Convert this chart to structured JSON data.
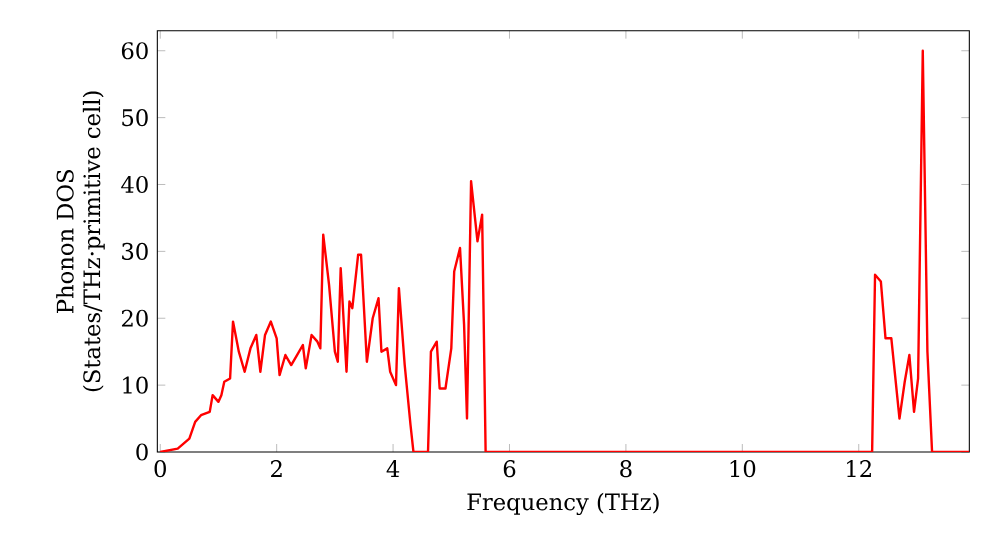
{
  "chart_data": {
    "type": "line",
    "xlabel": "Frequency (THz)",
    "ylabel": "Phonon DOS\n(States/THz·primitive cell)",
    "xlim": [
      -0.05,
      13.9
    ],
    "ylim": [
      0,
      63
    ],
    "xticks": [
      0,
      2,
      4,
      6,
      8,
      10,
      12
    ],
    "yticks": [
      0,
      10,
      20,
      30,
      40,
      50,
      60
    ],
    "grid": false,
    "marker": "none",
    "line_style": "solid",
    "series": [
      {
        "color": "#ff0000",
        "x": [
          0.0,
          0.3,
          0.5,
          0.6,
          0.7,
          0.85,
          0.9,
          1.0,
          1.05,
          1.1,
          1.2,
          1.25,
          1.35,
          1.45,
          1.55,
          1.65,
          1.72,
          1.8,
          1.9,
          2.0,
          2.05,
          2.15,
          2.25,
          2.35,
          2.45,
          2.5,
          2.6,
          2.7,
          2.75,
          2.8,
          2.9,
          3.0,
          3.05,
          3.1,
          3.2,
          3.25,
          3.3,
          3.4,
          3.45,
          3.55,
          3.65,
          3.75,
          3.8,
          3.9,
          3.95,
          4.05,
          4.1,
          4.2,
          4.3,
          4.35,
          4.6,
          4.65,
          4.75,
          4.8,
          4.9,
          5.0,
          5.05,
          5.15,
          5.22,
          5.27,
          5.34,
          5.45,
          5.53,
          5.59,
          12.23,
          12.28,
          12.38,
          12.46,
          12.56,
          12.7,
          12.79,
          12.87,
          12.95,
          13.02,
          13.1,
          13.18,
          13.26,
          13.9
        ],
        "values": [
          0,
          0.5,
          2,
          4.5,
          5.5,
          6,
          8.5,
          7.5,
          8.5,
          10.5,
          11,
          19.5,
          15,
          12,
          15.5,
          17.5,
          12,
          17.5,
          19.5,
          17,
          11.5,
          14.5,
          13,
          14.5,
          16,
          12.5,
          17.5,
          16.5,
          15.5,
          32.5,
          25,
          15,
          13.5,
          27.5,
          12,
          22.5,
          21.5,
          29.5,
          29.5,
          13.5,
          20,
          23,
          15,
          15.5,
          12,
          10,
          24.5,
          13,
          4,
          0,
          0,
          15,
          16.5,
          9.5,
          9.5,
          15.5,
          27,
          30.5,
          19,
          5,
          40.5,
          31.5,
          35.5,
          0,
          0,
          26.5,
          25.5,
          17,
          17,
          5,
          10.5,
          14.5,
          6,
          11,
          60,
          15,
          0,
          0
        ]
      }
    ]
  }
}
